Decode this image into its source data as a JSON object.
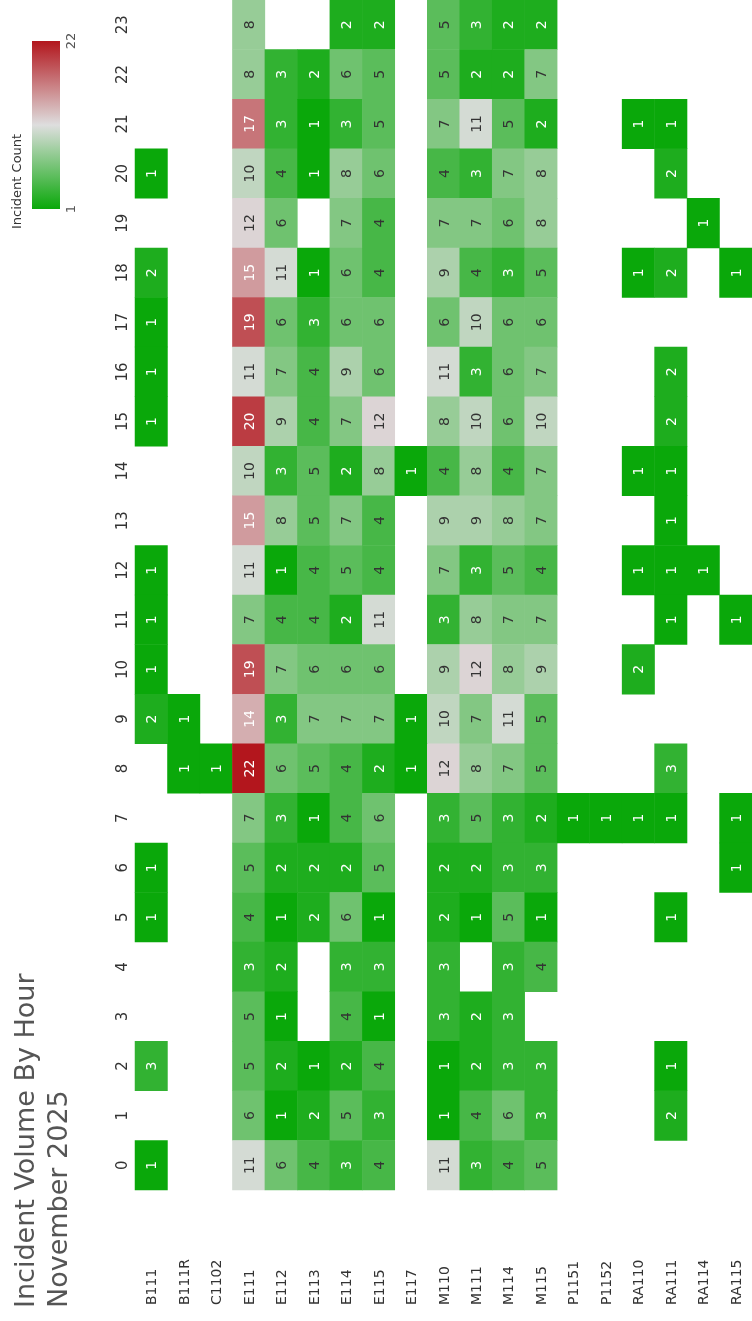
{
  "chart_data": {
    "type": "heatmap",
    "title": "Incident Volume By Hour",
    "subtitle": "November 2025",
    "clabel": "Incident Count",
    "categories": [
      "B111",
      "B111R",
      "C1102",
      "E111",
      "E112",
      "E113",
      "E114",
      "E115",
      "E117",
      "M110",
      "M111",
      "M114",
      "M115",
      "P1151",
      "P1152",
      "RA110",
      "RA111",
      "RA114",
      "RA115"
    ],
    "y_categories": [
      "23",
      "22",
      "21",
      "20",
      "19",
      "18",
      "17",
      "16",
      "15",
      "14",
      "13",
      "12",
      "11",
      "10",
      "9",
      "8",
      "7",
      "6",
      "5",
      "4",
      "3",
      "2",
      "1",
      "0"
    ],
    "cells": [
      [
        null,
        null,
        null,
        8,
        null,
        null,
        2,
        2,
        null,
        5,
        3,
        2,
        2,
        null,
        null,
        null,
        null,
        null,
        null
      ],
      [
        null,
        null,
        null,
        8,
        3,
        2,
        6,
        5,
        null,
        5,
        2,
        2,
        7,
        null,
        null,
        null,
        null,
        null,
        null
      ],
      [
        null,
        null,
        null,
        17,
        3,
        1,
        3,
        5,
        null,
        7,
        11,
        5,
        2,
        null,
        null,
        1,
        1,
        null,
        null
      ],
      [
        1,
        null,
        null,
        10,
        4,
        1,
        8,
        6,
        null,
        4,
        3,
        7,
        8,
        null,
        null,
        null,
        2,
        null,
        null
      ],
      [
        null,
        null,
        null,
        12,
        6,
        null,
        7,
        4,
        null,
        7,
        7,
        6,
        8,
        null,
        null,
        null,
        null,
        1,
        null
      ],
      [
        2,
        null,
        null,
        15,
        11,
        1,
        6,
        4,
        null,
        9,
        4,
        3,
        5,
        null,
        null,
        1,
        2,
        null,
        1
      ],
      [
        1,
        null,
        null,
        19,
        6,
        3,
        6,
        6,
        null,
        6,
        10,
        6,
        6,
        null,
        null,
        null,
        null,
        null,
        null
      ],
      [
        1,
        null,
        null,
        11,
        7,
        4,
        9,
        6,
        null,
        11,
        3,
        6,
        7,
        null,
        null,
        null,
        2,
        null,
        null
      ],
      [
        1,
        null,
        null,
        20,
        9,
        4,
        7,
        12,
        null,
        8,
        10,
        6,
        10,
        null,
        null,
        null,
        2,
        null,
        null
      ],
      [
        null,
        null,
        null,
        10,
        3,
        5,
        2,
        8,
        1,
        4,
        8,
        4,
        7,
        null,
        null,
        1,
        1,
        null,
        null
      ],
      [
        null,
        null,
        null,
        15,
        8,
        5,
        7,
        4,
        null,
        9,
        9,
        8,
        7,
        null,
        null,
        null,
        1,
        null,
        null
      ],
      [
        1,
        null,
        null,
        11,
        1,
        4,
        5,
        4,
        null,
        7,
        3,
        5,
        4,
        null,
        null,
        1,
        1,
        1,
        null
      ],
      [
        1,
        null,
        null,
        7,
        4,
        4,
        2,
        11,
        null,
        3,
        8,
        7,
        7,
        null,
        null,
        null,
        1,
        null,
        1
      ],
      [
        1,
        null,
        null,
        19,
        7,
        6,
        6,
        6,
        null,
        9,
        12,
        8,
        9,
        null,
        null,
        2,
        null,
        null,
        null
      ],
      [
        2,
        1,
        null,
        14,
        3,
        7,
        7,
        7,
        1,
        10,
        7,
        11,
        5,
        null,
        null,
        null,
        null,
        null,
        null
      ],
      [
        null,
        1,
        1,
        22,
        6,
        5,
        4,
        2,
        1,
        12,
        8,
        7,
        5,
        null,
        null,
        null,
        3,
        null,
        null
      ],
      [
        null,
        null,
        null,
        7,
        3,
        1,
        4,
        6,
        null,
        3,
        5,
        3,
        2,
        1,
        1,
        1,
        1,
        null,
        1
      ],
      [
        1,
        null,
        null,
        5,
        2,
        2,
        2,
        5,
        null,
        2,
        2,
        3,
        3,
        null,
        null,
        null,
        null,
        null,
        1
      ],
      [
        1,
        null,
        null,
        4,
        1,
        2,
        6,
        1,
        null,
        2,
        1,
        5,
        1,
        null,
        null,
        null,
        1,
        null,
        null
      ],
      [
        null,
        null,
        null,
        3,
        2,
        null,
        3,
        3,
        null,
        3,
        null,
        3,
        4,
        null,
        null,
        null,
        null,
        null,
        null
      ],
      [
        null,
        null,
        null,
        5,
        1,
        null,
        4,
        1,
        null,
        3,
        2,
        3,
        null,
        null,
        null,
        null,
        null,
        null,
        null
      ],
      [
        3,
        null,
        null,
        5,
        2,
        1,
        2,
        4,
        null,
        1,
        2,
        3,
        3,
        null,
        null,
        null,
        1,
        null,
        null
      ],
      [
        null,
        null,
        null,
        6,
        1,
        2,
        5,
        3,
        null,
        1,
        4,
        6,
        3,
        null,
        null,
        null,
        2,
        null,
        null
      ],
      [
        1,
        null,
        null,
        11,
        6,
        4,
        3,
        4,
        null,
        11,
        3,
        4,
        5,
        null,
        null,
        null,
        null,
        null,
        null
      ]
    ],
    "clim": [
      1,
      22
    ],
    "cticks": [
      1,
      22
    ],
    "data_labels": true
  }
}
